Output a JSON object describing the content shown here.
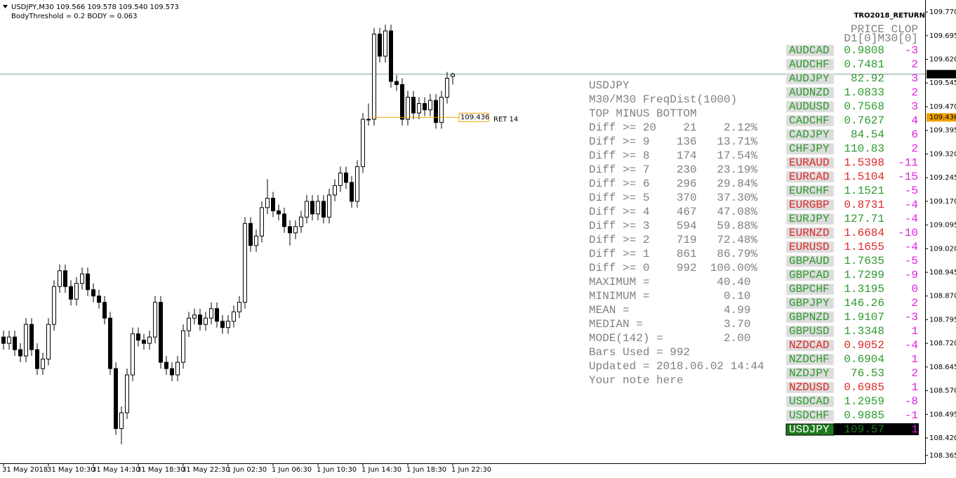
{
  "header": {
    "symbol_line": "USDJPY,M30 109.566 109.578 109.540 109.573",
    "params": "BodyThreshold = 0.2    BODY = 0.063"
  },
  "chart_data": {
    "type": "candlestick",
    "categories": [
      "31 May 2018",
      null,
      null,
      null,
      null,
      null,
      null,
      null,
      "31 May 10:30",
      null,
      null,
      null,
      null,
      null,
      null,
      null,
      "31 May 14:30",
      null,
      null,
      null,
      null,
      null,
      null,
      null,
      "31 May 18:30",
      null,
      null,
      null,
      null,
      null,
      null,
      null,
      "31 May 22:30",
      null,
      null,
      null,
      null,
      null,
      null,
      null,
      "1 Jun 02:30",
      null,
      null,
      null,
      null,
      null,
      null,
      null,
      "1 Jun 06:30",
      null,
      null,
      null,
      null,
      null,
      null,
      null,
      "1 Jun 10:30",
      null,
      null,
      null,
      null,
      null,
      null,
      null,
      "1 Jun 14:30",
      null,
      null,
      null,
      null,
      null,
      null,
      null,
      "1 Jun 18:30",
      null,
      null,
      null,
      null,
      null,
      null,
      null,
      "1 Jun 22:30"
    ],
    "open": [
      108.74,
      108.72,
      108.74,
      108.7,
      108.68,
      108.78,
      108.7,
      108.64,
      108.67,
      108.78,
      108.9,
      108.95,
      108.9,
      108.86,
      108.91,
      108.94,
      108.89,
      108.87,
      108.85,
      108.8,
      108.64,
      108.45,
      108.5,
      108.62,
      108.75,
      108.73,
      108.72,
      108.74,
      108.85,
      108.66,
      108.64,
      108.62,
      108.66,
      108.76,
      108.8,
      108.81,
      108.78,
      108.8,
      108.83,
      108.79,
      108.77,
      108.79,
      108.82,
      108.85,
      109.1,
      109.03,
      109.06,
      109.15,
      109.18,
      109.14,
      109.13,
      109.09,
      109.07,
      109.09,
      109.12,
      109.17,
      109.13,
      109.17,
      109.12,
      109.19,
      109.22,
      109.26,
      109.23,
      109.17,
      109.28,
      109.43,
      109.43,
      109.7,
      109.63,
      109.71,
      109.55,
      109.54,
      109.43,
      109.5,
      109.45,
      109.48,
      109.46,
      109.49,
      109.42,
      109.5,
      109.566
    ],
    "high": [
      108.76,
      108.76,
      108.76,
      108.72,
      108.8,
      108.8,
      108.72,
      108.69,
      108.8,
      108.92,
      108.97,
      108.97,
      108.92,
      108.93,
      108.96,
      108.96,
      108.91,
      108.89,
      108.87,
      108.82,
      108.66,
      108.52,
      108.64,
      108.77,
      108.77,
      108.75,
      108.76,
      108.87,
      108.87,
      108.68,
      108.66,
      108.68,
      108.78,
      108.82,
      108.83,
      108.83,
      108.82,
      108.85,
      108.85,
      108.81,
      108.81,
      108.84,
      108.87,
      109.12,
      109.12,
      109.08,
      109.17,
      109.24,
      109.2,
      109.16,
      109.15,
      109.11,
      109.11,
      109.14,
      109.19,
      109.19,
      109.19,
      109.19,
      109.21,
      109.24,
      109.28,
      109.28,
      109.25,
      109.3,
      109.45,
      109.48,
      109.72,
      109.72,
      109.73,
      109.73,
      109.57,
      109.56,
      109.52,
      109.52,
      109.5,
      109.5,
      109.51,
      109.51,
      109.52,
      109.58,
      109.578
    ],
    "low": [
      108.7,
      108.7,
      108.68,
      108.66,
      108.66,
      108.68,
      108.62,
      108.62,
      108.65,
      108.76,
      108.88,
      108.88,
      108.84,
      108.84,
      108.89,
      108.87,
      108.85,
      108.83,
      108.78,
      108.62,
      108.43,
      108.4,
      108.48,
      108.6,
      108.71,
      108.7,
      108.7,
      108.72,
      108.64,
      108.62,
      108.6,
      108.6,
      108.64,
      108.74,
      108.78,
      108.76,
      108.76,
      108.78,
      108.77,
      108.75,
      108.75,
      108.77,
      108.8,
      108.83,
      109.01,
      109.01,
      109.04,
      109.13,
      109.12,
      109.11,
      109.07,
      109.03,
      109.05,
      109.07,
      109.1,
      109.11,
      109.11,
      109.1,
      109.1,
      109.17,
      109.2,
      109.21,
      109.15,
      109.15,
      109.26,
      109.41,
      109.41,
      109.61,
      109.61,
      109.53,
      109.52,
      109.41,
      109.41,
      109.43,
      109.43,
      109.44,
      109.44,
      109.4,
      109.4,
      109.48,
      109.54
    ],
    "close": [
      108.72,
      108.74,
      108.7,
      108.68,
      108.78,
      108.7,
      108.64,
      108.67,
      108.78,
      108.9,
      108.95,
      108.9,
      108.86,
      108.91,
      108.94,
      108.89,
      108.87,
      108.85,
      108.8,
      108.64,
      108.45,
      108.5,
      108.62,
      108.75,
      108.73,
      108.72,
      108.74,
      108.85,
      108.66,
      108.64,
      108.62,
      108.66,
      108.76,
      108.8,
      108.81,
      108.78,
      108.8,
      108.83,
      108.79,
      108.77,
      108.79,
      108.82,
      108.85,
      109.1,
      109.03,
      109.06,
      109.15,
      109.18,
      109.14,
      109.13,
      109.09,
      109.07,
      109.09,
      109.12,
      109.17,
      109.13,
      109.17,
      109.12,
      109.19,
      109.22,
      109.26,
      109.23,
      109.17,
      109.28,
      109.43,
      109.43,
      109.7,
      109.63,
      109.71,
      109.55,
      109.54,
      109.43,
      109.5,
      109.45,
      109.48,
      109.46,
      109.49,
      109.42,
      109.5,
      109.56,
      109.573
    ],
    "ylim": [
      108.34,
      109.808
    ],
    "yticks": [
      {
        "value": 109.77,
        "label": "109.770"
      },
      109.695,
      {
        "value": 109.62,
        "label": "109.620"
      },
      109.545,
      {
        "value": 109.47,
        "label": "109.470"
      },
      109.395,
      {
        "value": 109.32,
        "label": "109.320"
      },
      109.245,
      {
        "value": 109.17,
        "label": "109.170"
      },
      109.095,
      {
        "value": 109.02,
        "label": "109.020"
      },
      108.945,
      {
        "value": 108.87,
        "label": "108.870"
      },
      108.795,
      {
        "value": 108.72,
        "label": "108.720"
      },
      108.645,
      {
        "value": 108.57,
        "label": "108.570"
      },
      108.495,
      {
        "value": 108.42,
        "label": "108.420"
      },
      108.365
    ],
    "current_price": 109.573,
    "ret_level": 109.436,
    "ret_label": "RET 14",
    "up_color": "#ffffff",
    "down_color": "#000000",
    "line_color": "#7f9f9f",
    "ret_color": "#f0a000"
  },
  "stats_panel": {
    "lines": [
      "USDJPY",
      "M30/M30 FreqDist(1000)",
      "TOP MINUS BOTTOM",
      "Diff >= 20    21    2.12%",
      "Diff >= 9    136   13.71%",
      "Diff >= 8    174   17.54%",
      "Diff >= 7    230   23.19%",
      "Diff >= 6    296   29.84%",
      "Diff >= 5    370   37.30%",
      "Diff >= 4    467   47.08%",
      "Diff >= 3    594   59.88%",
      "Diff >= 2    719   72.48%",
      "Diff >= 1    861   86.79%",
      "Diff >= 0    992  100.00%",
      "MAXIMUM =          40.40",
      "MINIMUM =           0.10",
      "MEAN =              4.99",
      "MEDIAN =            3.70",
      "MODE(142) =         2.00",
      "Bars Used = 992",
      "Updated = 2018.06.02 14:44",
      "Your note here"
    ]
  },
  "market_panel": {
    "title": "TRO2018_RETURN",
    "header": "PRICE CLOP",
    "subheader": "D1[0]M30[0]",
    "rows": [
      {
        "pair": "AUDCAD",
        "price": "0.9808",
        "clop": "-3",
        "color": "#2e9a2e"
      },
      {
        "pair": "AUDCHF",
        "price": "0.7481",
        "clop": "2",
        "color": "#2e9a2e"
      },
      {
        "pair": "AUDJPY",
        "price": "82.92",
        "clop": "3",
        "color": "#2e9a2e"
      },
      {
        "pair": "AUDNZD",
        "price": "1.0833",
        "clop": "2",
        "color": "#2e9a2e"
      },
      {
        "pair": "AUDUSD",
        "price": "0.7568",
        "clop": "3",
        "color": "#2e9a2e"
      },
      {
        "pair": "CADCHF",
        "price": "0.7627",
        "clop": "4",
        "color": "#2e9a2e"
      },
      {
        "pair": "CADJPY",
        "price": "84.54",
        "clop": "6",
        "color": "#2e9a2e"
      },
      {
        "pair": "CHFJPY",
        "price": "110.83",
        "clop": "2",
        "color": "#2e9a2e"
      },
      {
        "pair": "EURAUD",
        "price": "1.5398",
        "clop": "-11",
        "color": "#e02828"
      },
      {
        "pair": "EURCAD",
        "price": "1.5104",
        "clop": "-15",
        "color": "#e02828"
      },
      {
        "pair": "EURCHF",
        "price": "1.1521",
        "clop": "-5",
        "color": "#2e9a2e"
      },
      {
        "pair": "EURGBP",
        "price": "0.8731",
        "clop": "-4",
        "color": "#e02828"
      },
      {
        "pair": "EURJPY",
        "price": "127.71",
        "clop": "-4",
        "color": "#2e9a2e"
      },
      {
        "pair": "EURNZD",
        "price": "1.6684",
        "clop": "-10",
        "color": "#e02828"
      },
      {
        "pair": "EURUSD",
        "price": "1.1655",
        "clop": "-4",
        "color": "#e02828"
      },
      {
        "pair": "GBPAUD",
        "price": "1.7635",
        "clop": "-5",
        "color": "#2e9a2e"
      },
      {
        "pair": "GBPCAD",
        "price": "1.7299",
        "clop": "-9",
        "color": "#2e9a2e"
      },
      {
        "pair": "GBPCHF",
        "price": "1.3195",
        "clop": "0",
        "color": "#2e9a2e"
      },
      {
        "pair": "GBPJPY",
        "price": "146.26",
        "clop": "2",
        "color": "#2e9a2e"
      },
      {
        "pair": "GBPNZD",
        "price": "1.9107",
        "clop": "-3",
        "color": "#2e9a2e"
      },
      {
        "pair": "GBPUSD",
        "price": "1.3348",
        "clop": "1",
        "color": "#2e9a2e"
      },
      {
        "pair": "NZDCAD",
        "price": "0.9052",
        "clop": "-4",
        "color": "#e02828"
      },
      {
        "pair": "NZDCHF",
        "price": "0.6904",
        "clop": "1",
        "color": "#2e9a2e"
      },
      {
        "pair": "NZDJPY",
        "price": "76.53",
        "clop": "2",
        "color": "#2e9a2e"
      },
      {
        "pair": "NZDUSD",
        "price": "0.6985",
        "clop": "1",
        "color": "#e02828"
      },
      {
        "pair": "USDCAD",
        "price": "1.2959",
        "clop": "-8",
        "color": "#2e9a2e"
      },
      {
        "pair": "USDCHF",
        "price": "0.9885",
        "clop": "-1",
        "color": "#2e9a2e"
      },
      {
        "pair": "USDJPY",
        "price": "109.57",
        "clop": "1",
        "color": "#1e7a1e",
        "selected": true
      }
    ],
    "clop_color": "#e020e0"
  }
}
